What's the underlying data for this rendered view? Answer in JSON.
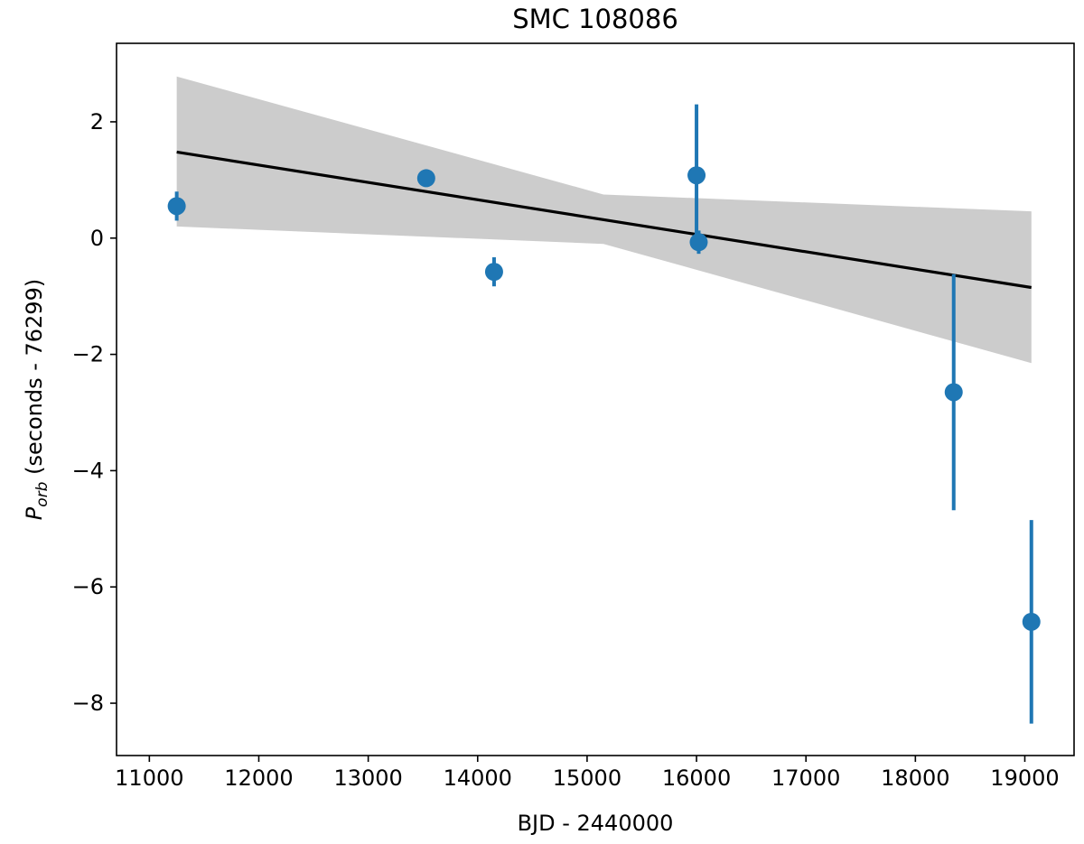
{
  "chart_data": {
    "type": "scatter",
    "title": "SMC 108086",
    "xlabel": "BJD - 2440000",
    "ylabel_main": "P",
    "ylabel_sub": "orb",
    "ylabel_rest": " (seconds - 76299)",
    "xlim": [
      10700,
      19450
    ],
    "ylim": [
      -8.9,
      3.35
    ],
    "xticks": [
      11000,
      12000,
      13000,
      14000,
      15000,
      16000,
      17000,
      18000,
      19000
    ],
    "xtick_labels": [
      "11000",
      "12000",
      "13000",
      "14000",
      "15000",
      "16000",
      "17000",
      "18000",
      "19000"
    ],
    "yticks": [
      -8,
      -6,
      -4,
      -2,
      0,
      2
    ],
    "ytick_labels": [
      "−8",
      "−6",
      "−4",
      "−2",
      "0",
      "2"
    ],
    "points": [
      {
        "x": 11250,
        "y": 0.55,
        "err": 0.25
      },
      {
        "x": 13530,
        "y": 1.03,
        "err": 0.05
      },
      {
        "x": 14150,
        "y": -0.58,
        "err": 0.25
      },
      {
        "x": 16000,
        "y": 1.08,
        "err": 1.22
      },
      {
        "x": 16020,
        "y": -0.07,
        "err": 0.2
      },
      {
        "x": 18350,
        "y": -2.65,
        "err": 2.03
      },
      {
        "x": 19060,
        "y": -6.6,
        "err": 1.75
      }
    ],
    "fit_line": {
      "x": [
        11250,
        19060
      ],
      "y": [
        1.48,
        -0.85
      ]
    },
    "confidence_band": {
      "x": [
        11250,
        15150,
        19060
      ],
      "upper": [
        2.78,
        0.75,
        0.46
      ],
      "lower": [
        0.2,
        -0.1,
        -2.15
      ]
    },
    "colors": {
      "points": "#1f77b4",
      "fit": "#000000",
      "band": "#cccccc"
    }
  }
}
